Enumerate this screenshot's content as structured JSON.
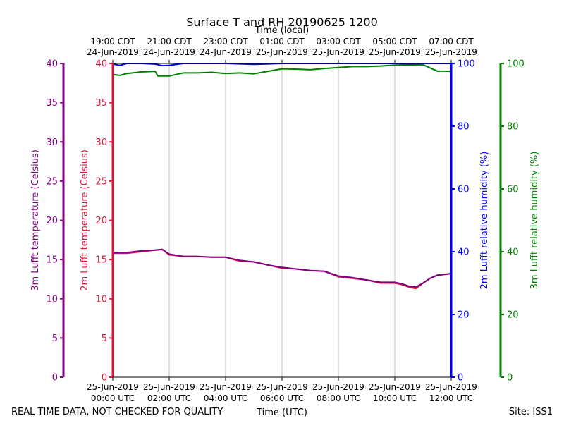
{
  "chart_data": {
    "type": "line",
    "title": "Surface T and RH 20190625 1200",
    "top_axis_label": "Time (local)",
    "xlabel": "Time (UTC)",
    "footer_left": "REAL TIME DATA, NOT CHECKED FOR QUALITY",
    "footer_right": "Site: ISS1",
    "xlim": [
      0,
      12
    ],
    "grid": true,
    "x_ticks_utc": [
      {
        "x": 0,
        "line1": "25-Jun-2019",
        "line2": "00:00 UTC"
      },
      {
        "x": 2,
        "line1": "25-Jun-2019",
        "line2": "02:00 UTC"
      },
      {
        "x": 4,
        "line1": "25-Jun-2019",
        "line2": "04:00 UTC"
      },
      {
        "x": 6,
        "line1": "25-Jun-2019",
        "line2": "06:00 UTC"
      },
      {
        "x": 8,
        "line1": "25-Jun-2019",
        "line2": "08:00 UTC"
      },
      {
        "x": 10,
        "line1": "25-Jun-2019",
        "line2": "10:00 UTC"
      },
      {
        "x": 12,
        "line1": "25-Jun-2019",
        "line2": "12:00 UTC"
      }
    ],
    "x_ticks_local": [
      {
        "x": 0,
        "line1": "19:00 CDT",
        "line2": "24-Jun-2019"
      },
      {
        "x": 2,
        "line1": "21:00 CDT",
        "line2": "24-Jun-2019"
      },
      {
        "x": 4,
        "line1": "23:00 CDT",
        "line2": "24-Jun-2019"
      },
      {
        "x": 6,
        "line1": "01:00 CDT",
        "line2": "25-Jun-2019"
      },
      {
        "x": 8,
        "line1": "03:00 CDT",
        "line2": "25-Jun-2019"
      },
      {
        "x": 10,
        "line1": "05:00 CDT",
        "line2": "25-Jun-2019"
      },
      {
        "x": 12,
        "line1": "07:00 CDT",
        "line2": "25-Jun-2019"
      }
    ],
    "axes": [
      {
        "id": "t3m",
        "label": "3m Lufft temperature (Celsius)",
        "color": "#800080",
        "ylim": [
          0,
          40
        ],
        "ticks": [
          0,
          5,
          10,
          15,
          20,
          25,
          30,
          35,
          40
        ],
        "side": "left-outer"
      },
      {
        "id": "t2m",
        "label": "2m Lufft temperature (Celsius)",
        "color": "#dc143c",
        "ylim": [
          0,
          40
        ],
        "ticks": [
          0,
          5,
          10,
          15,
          20,
          25,
          30,
          35,
          40
        ],
        "side": "left-inner"
      },
      {
        "id": "rh2m",
        "label": "2m Lufft relative humidity (%)",
        "color": "#0000ff",
        "ylim": [
          0,
          100
        ],
        "ticks": [
          0,
          20,
          40,
          60,
          80,
          100
        ],
        "side": "right-inner"
      },
      {
        "id": "rh3m",
        "label": "3m Lufft relative humidity (%)",
        "color": "#008000",
        "ylim": [
          0,
          100
        ],
        "ticks": [
          0,
          20,
          40,
          60,
          80,
          100
        ],
        "side": "right-outer"
      }
    ],
    "series": [
      {
        "axis": "t2m",
        "color": "#dc143c",
        "x": [
          0,
          0.5,
          1.0,
          1.5,
          1.75,
          2.0,
          2.5,
          3.0,
          3.5,
          4.0,
          4.5,
          5.0,
          5.5,
          6.0,
          6.5,
          7.0,
          7.5,
          8.0,
          8.5,
          9.0,
          9.5,
          10.0,
          10.25,
          10.5,
          10.75,
          11.0,
          11.25,
          11.5,
          12.0
        ],
        "values": [
          15.8,
          15.8,
          16.0,
          16.2,
          16.3,
          15.6,
          15.4,
          15.4,
          15.3,
          15.3,
          14.8,
          14.7,
          14.3,
          13.9,
          13.8,
          13.6,
          13.5,
          12.8,
          12.6,
          12.4,
          12.0,
          12.0,
          11.8,
          11.5,
          11.3,
          12.0,
          12.6,
          13.0,
          13.2
        ]
      },
      {
        "axis": "t3m",
        "color": "#800080",
        "x": [
          0,
          0.5,
          1.0,
          1.5,
          1.75,
          2.0,
          2.5,
          3.0,
          3.5,
          4.0,
          4.5,
          5.0,
          5.5,
          6.0,
          6.5,
          7.0,
          7.5,
          8.0,
          8.5,
          9.0,
          9.5,
          10.0,
          10.25,
          10.5,
          10.75,
          11.0,
          11.25,
          11.5,
          12.0
        ],
        "values": [
          15.9,
          15.9,
          16.1,
          16.2,
          16.3,
          15.7,
          15.4,
          15.4,
          15.3,
          15.3,
          14.9,
          14.7,
          14.3,
          14.0,
          13.8,
          13.6,
          13.5,
          12.9,
          12.7,
          12.4,
          12.1,
          12.1,
          11.9,
          11.6,
          11.5,
          12.0,
          12.6,
          13.0,
          13.2
        ]
      },
      {
        "axis": "rh3m",
        "color": "#008000",
        "x": [
          0,
          0.25,
          0.5,
          1.0,
          1.5,
          1.6,
          2.0,
          2.5,
          3.0,
          3.5,
          4.0,
          4.5,
          5.0,
          5.5,
          6.0,
          6.5,
          7.0,
          7.5,
          8.0,
          8.5,
          9.0,
          9.5,
          10.0,
          10.5,
          11.0,
          11.5,
          12.0
        ],
        "values": [
          96.5,
          96.2,
          96.8,
          97.3,
          97.5,
          96.0,
          96.0,
          97.0,
          97.0,
          97.2,
          96.8,
          97.0,
          96.7,
          97.5,
          98.3,
          98.2,
          98.0,
          98.4,
          98.7,
          99.0,
          99.0,
          99.2,
          99.5,
          99.4,
          99.6,
          97.6,
          97.5
        ]
      },
      {
        "axis": "rh2m",
        "color": "#0000ff",
        "x": [
          0,
          0.25,
          0.5,
          1.0,
          1.5,
          1.75,
          2.0,
          2.5,
          3.0,
          4.0,
          5.0,
          6.0,
          7.0,
          8.0,
          9.0,
          10.0,
          10.5,
          11.0,
          12.0
        ],
        "values": [
          99.8,
          99.4,
          100,
          100,
          99.8,
          99.3,
          99.4,
          100,
          100,
          100,
          99.7,
          100,
          100,
          100,
          100,
          100,
          99.8,
          100,
          100
        ]
      }
    ]
  }
}
